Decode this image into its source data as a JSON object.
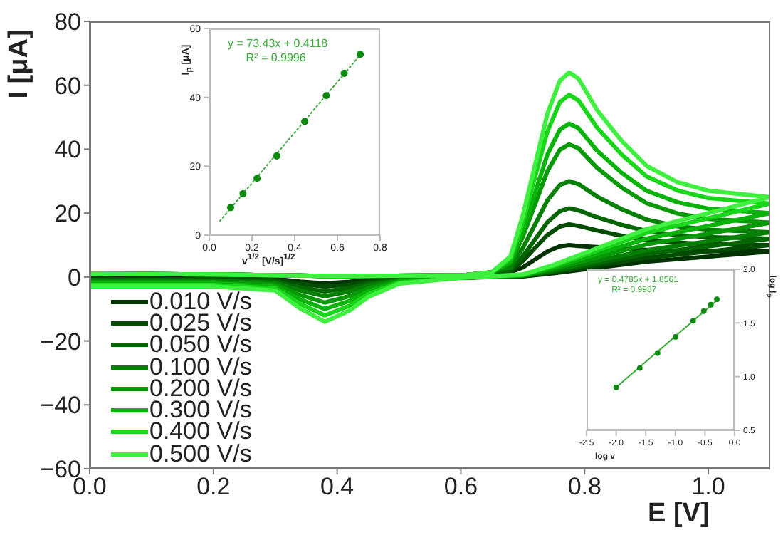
{
  "chart_data": [
    {
      "type": "line",
      "xlabel": "E [V]",
      "ylabel": "I [μA]",
      "xlim": [
        0,
        1.1
      ],
      "ylim": [
        -60,
        80
      ],
      "xticks": [
        {
          "value": 0,
          "label": "0.0"
        },
        {
          "value": 0.2,
          "label": "0.2"
        },
        {
          "value": 0.4,
          "label": "0.4"
        },
        {
          "value": 0.6,
          "label": "0.6"
        },
        {
          "value": 0.8,
          "label": "0.8"
        },
        {
          "value": 1,
          "label": "1.0"
        }
      ],
      "yticks": [
        {
          "value": -60,
          "label": "−60"
        },
        {
          "value": -40,
          "label": "−40"
        },
        {
          "value": -20,
          "label": "−20"
        },
        0,
        20,
        40,
        60,
        80
      ],
      "legend": "bottom left",
      "marker": "none",
      "line_style": "solid",
      "x": [
        0,
        0.2,
        0.4,
        0.6,
        0.65,
        0.68,
        0.7,
        0.72,
        0.74,
        0.76,
        0.775,
        0.79,
        0.82,
        0.86,
        0.9,
        0.95,
        1.0,
        1.1,
        1.0,
        0.9,
        0.8,
        0.75,
        0.7,
        0.6,
        0.5,
        0.45,
        0.42,
        0.38,
        0.34,
        0.3,
        0.2,
        0
      ],
      "series": [
        {
          "name": "0.010 V/s",
          "color": "#013201",
          "values": [
            1,
            0.8,
            0.3,
            0.5,
            1.5,
            1.5,
            3,
            5.5,
            8,
            9.6,
            10,
            9.7,
            9.4,
            8.9,
            8.5,
            8.2,
            8.1,
            8,
            6.4,
            4.8,
            2.4,
            1.2,
            0.2,
            -0.2,
            -0.3,
            -0.9,
            -1.5,
            -2,
            -1.4,
            -0.6,
            -0.4,
            -0.4
          ]
        },
        {
          "name": "0.025 V/s",
          "color": "#024d02",
          "values": [
            1,
            0.8,
            0.3,
            0.5,
            1.5,
            1.7,
            5,
            9.1,
            13.2,
            15.8,
            16.5,
            16,
            14.6,
            12.9,
            11.6,
            10.8,
            10.3,
            10,
            8,
            6,
            3,
            1.5,
            0.3,
            -0.2,
            -0.5,
            -1.4,
            -2.3,
            -3,
            -2.1,
            -0.9,
            -0.6,
            -0.6
          ]
        },
        {
          "name": "0.050 V/s",
          "color": "#036603",
          "values": [
            1,
            0.8,
            0.3,
            0.5,
            1.5,
            2.2,
            6.5,
            11.8,
            17.2,
            20.6,
            21.5,
            20.9,
            18.7,
            16.3,
            14.4,
            13.1,
            12.5,
            12,
            9.6,
            7.2,
            3.6,
            1.8,
            0.4,
            -0.2,
            -0.7,
            -2,
            -3.4,
            -4.5,
            -3.2,
            -1.4,
            -0.9,
            -0.9
          ]
        },
        {
          "name": "0.100 V/s",
          "color": "#058005",
          "values": [
            1,
            0.8,
            0.3,
            0.5,
            1.5,
            3,
            9,
            16.5,
            24,
            28.8,
            30,
            29.1,
            25.2,
            21.2,
            18,
            15.9,
            14.8,
            14,
            11.2,
            8.4,
            4.2,
            2.1,
            0.4,
            -0.2,
            -0.9,
            -2.7,
            -4.5,
            -6,
            -4.2,
            -1.8,
            -1.2,
            -1.2
          ]
        },
        {
          "name": "0.200 V/s",
          "color": "#079907",
          "values": [
            1,
            0.8,
            0.3,
            0.5,
            1.5,
            4.2,
            12.5,
            22.8,
            33.2,
            39.8,
            41.5,
            40.3,
            34.2,
            28,
            23.1,
            19.9,
            18.2,
            17,
            13.6,
            10.2,
            5.1,
            2.6,
            0.5,
            -0.2,
            -1.2,
            -3.6,
            -6,
            -8,
            -5.6,
            -2.4,
            -1.6,
            -1.6
          ]
        },
        {
          "name": "0.300 V/s",
          "color": "#0ab30a",
          "values": [
            1,
            0.8,
            0.3,
            0.5,
            1.5,
            4.8,
            14.4,
            26.4,
            38.4,
            46.1,
            48,
            46.6,
            39.6,
            32.6,
            27,
            23.4,
            21.4,
            20,
            16,
            12,
            6,
            3,
            0.6,
            -0.2,
            -1.5,
            -4.5,
            -7.5,
            -10,
            -7,
            -3,
            -2,
            -2
          ]
        },
        {
          "name": "0.400 V/s",
          "color": "#1ad61a",
          "values": [
            1,
            0.8,
            0.3,
            0.5,
            1.5,
            5.7,
            17.1,
            31.4,
            45.6,
            54.7,
            57,
            55.3,
            46.8,
            38.3,
            31.5,
            27.1,
            24.7,
            23,
            18.4,
            13.8,
            6.9,
            3.5,
            0.7,
            -0.2,
            -1.8,
            -5.4,
            -9,
            -12,
            -8.4,
            -3.6,
            -2.5,
            -2.5
          ]
        },
        {
          "name": "0.500 V/s",
          "color": "#40f040",
          "values": [
            1,
            0.8,
            0.3,
            0.5,
            1.5,
            6.4,
            19.2,
            35.2,
            51.2,
            61.4,
            64,
            62.1,
            52.3,
            42.6,
            34.8,
            29.7,
            27,
            25,
            20,
            15,
            7.5,
            3.8,
            0.8,
            -0.2,
            -2.1,
            -6.3,
            -10.5,
            -14,
            -9.8,
            -4.2,
            -3,
            -3
          ]
        }
      ]
    },
    {
      "type": "scatter",
      "xlabel": "v$^{1/2}$ [V/s]$^{1/2}$",
      "ylabel": "I$_{p}$ [μA]",
      "xlim": [
        0,
        0.8
      ],
      "ylim": [
        0,
        60
      ],
      "xticks": [
        {
          "value": 0,
          "label": "0.0"
        },
        0.2,
        0.4,
        0.6,
        0.8
      ],
      "yticks": [
        0,
        20,
        40,
        60
      ],
      "marker": "circle",
      "annotations": [
        "y = 73.43x + 0.4118",
        "R² = 0.9996"
      ],
      "series": [
        {
          "color": "#0b8a0b",
          "x": [
            0.1,
            0.158,
            0.224,
            0.316,
            0.447,
            0.548,
            0.632,
            0.707
          ],
          "values": [
            8,
            12,
            16.5,
            23,
            33,
            40.5,
            47,
            52.5
          ]
        },
        {
          "type": "line",
          "color": "#3aaa3a",
          "line_style": "dotted",
          "marker": "none",
          "x": [
            0.05,
            0.72
          ],
          "values": [
            4.1,
            53.3
          ]
        }
      ]
    },
    {
      "type": "scatter",
      "xlabel": "log v",
      "y2label": "log I$_{p}$",
      "xlim": [
        -2.5,
        0
      ],
      "y2lim": [
        0.5,
        2
      ],
      "xticks": [
        -2.5,
        {
          "value": -2,
          "label": "-2.0"
        },
        -1.5,
        {
          "value": -1,
          "label": "-1.0"
        },
        -0.5,
        {
          "value": 0,
          "label": "0.0"
        }
      ],
      "y2ticks": [
        0.5,
        {
          "value": 1,
          "label": "1.0"
        },
        1.5,
        {
          "value": 2,
          "label": "2.0"
        }
      ],
      "marker": "circle",
      "annotations": [
        "y = 0.4785x + 1.8561",
        "R² = 0.9987"
      ],
      "series": [
        {
          "color": "#0b8a0b",
          "axis": "y2",
          "x": [
            -2,
            -1.6,
            -1.3,
            -1,
            -0.7,
            -0.52,
            -0.4,
            -0.3
          ],
          "values": [
            0.9,
            1.08,
            1.22,
            1.37,
            1.52,
            1.61,
            1.67,
            1.72
          ]
        },
        {
          "type": "line",
          "axis": "y2",
          "color": "#3aaa3a",
          "line_style": "solid",
          "marker": "none",
          "x": [
            -2,
            -0.3
          ],
          "values": [
            0.9,
            1.71
          ]
        }
      ]
    }
  ]
}
